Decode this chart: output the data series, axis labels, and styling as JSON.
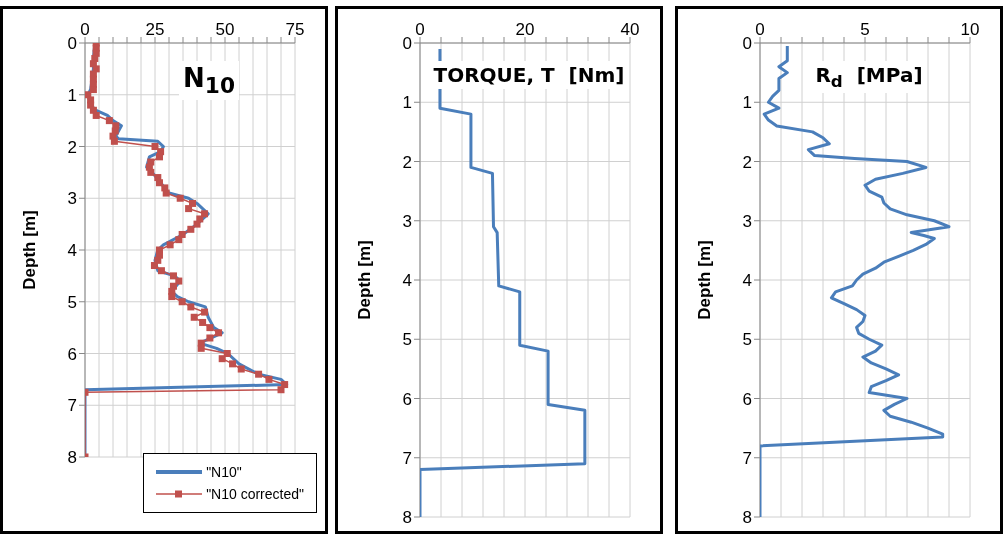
{
  "chart_data": [
    {
      "type": "line",
      "title": "N$_{10}$",
      "ylabel": "Depth  [m]",
      "xlim": [
        0,
        75
      ],
      "xticks": [
        0,
        {
          "value": 5,
          "label": null
        },
        {
          "value": 10,
          "label": null
        },
        {
          "value": 15,
          "label": null
        },
        {
          "value": 20,
          "label": null
        },
        25,
        {
          "value": 30,
          "label": null
        },
        {
          "value": 35,
          "label": null
        },
        {
          "value": 40,
          "label": null
        },
        {
          "value": 45,
          "label": null
        },
        50,
        {
          "value": 55,
          "label": null
        },
        {
          "value": 60,
          "label": null
        },
        {
          "value": 65,
          "label": null
        },
        {
          "value": 70,
          "label": null
        },
        75
      ],
      "ylim": [
        8,
        0
      ],
      "yticks": [
        0,
        1,
        2,
        3,
        4,
        5,
        6,
        7,
        8
      ],
      "grid": true,
      "legend": "bottom right",
      "series": [
        {
          "name": "\"N10\"",
          "color": "#4a7ebb",
          "marker": "none",
          "x": [
            3.5,
            3,
            3,
            2,
            1,
            2,
            4,
            8,
            10,
            13,
            11,
            12,
            26,
            28,
            27,
            23,
            22,
            24,
            27,
            30,
            37,
            40,
            42,
            44,
            40,
            35,
            28,
            26,
            25,
            26,
            32,
            34,
            31,
            33,
            37,
            43,
            44,
            46,
            49,
            41,
            47,
            51,
            55,
            62,
            70,
            72,
            0,
            0
          ],
          "values": [
            0,
            0.3,
            0.5,
            0.9,
            1,
            1.2,
            1.3,
            1.4,
            1.5,
            1.6,
            1.8,
            1.85,
            1.9,
            2,
            2.1,
            2.2,
            2.4,
            2.5,
            2.7,
            2.9,
            3,
            3.1,
            3.2,
            3.3,
            3.5,
            3.7,
            3.9,
            4,
            4.2,
            4.4,
            4.5,
            4.6,
            4.8,
            4.9,
            5,
            5.1,
            5.3,
            5.5,
            5.6,
            5.8,
            5.9,
            6,
            6.2,
            6.4,
            6.5,
            6.6,
            6.7,
            8
          ]
        },
        {
          "name": "\"N10 corrected\"",
          "color": "#c0504d",
          "marker": "square",
          "x": [
            4,
            4,
            4,
            3.5,
            3,
            4,
            3,
            3,
            3,
            3,
            1,
            2,
            2,
            3,
            4,
            8.7,
            11,
            10.8,
            10,
            10.5,
            25,
            27,
            26.6,
            23.5,
            23,
            23.5,
            26,
            26.6,
            28.5,
            29,
            34,
            38.4,
            37,
            42.7,
            41,
            40,
            37.8,
            34.7,
            33.5,
            30.4,
            26.6,
            26.6,
            26,
            24.8,
            27.3,
            31.6,
            33.5,
            31.6,
            31,
            31,
            34.7,
            37.8,
            42.7,
            39,
            42,
            44.6,
            47.7,
            44.6,
            41.5,
            41.5,
            50.8,
            49,
            52.7,
            55.8,
            62,
            65.7,
            71.3,
            70,
            0,
            0
          ],
          "values": [
            0,
            0.1,
            0.2,
            0.3,
            0.4,
            0.5,
            0.6,
            0.7,
            0.8,
            0.9,
            1,
            1.1,
            1.2,
            1.3,
            1.4,
            1.5,
            1.6,
            1.7,
            1.8,
            1.9,
            2,
            2.1,
            2.2,
            2.3,
            2.4,
            2.5,
            2.6,
            2.7,
            2.8,
            2.9,
            3,
            3.1,
            3.2,
            3.3,
            3.4,
            3.5,
            3.6,
            3.7,
            3.8,
            3.9,
            4,
            4.1,
            4.2,
            4.3,
            4.4,
            4.5,
            4.6,
            4.7,
            4.8,
            4.9,
            5,
            5.1,
            5.2,
            5.3,
            5.4,
            5.5,
            5.6,
            5.7,
            5.8,
            5.9,
            6,
            6.1,
            6.2,
            6.3,
            6.4,
            6.5,
            6.6,
            6.7,
            6.75,
            8
          ]
        }
      ]
    },
    {
      "type": "line",
      "title": "TORQUE, T  [Nm]",
      "ylabel": "Depth  [m]",
      "xlim": [
        0,
        40
      ],
      "xticks": [
        0,
        {
          "value": 4,
          "label": null
        },
        {
          "value": 8,
          "label": null
        },
        {
          "value": 12,
          "label": null
        },
        {
          "value": 16,
          "label": null
        },
        20,
        {
          "value": 24,
          "label": null
        },
        {
          "value": 28,
          "label": null
        },
        {
          "value": 32,
          "label": null
        },
        {
          "value": 36,
          "label": null
        },
        40
      ],
      "ylim": [
        8,
        0
      ],
      "yticks": [
        0,
        1,
        2,
        3,
        4,
        5,
        6,
        7,
        8
      ],
      "grid": true,
      "series": [
        {
          "color": "#4a7ebb",
          "marker": "none",
          "x": [
            3.8,
            3.8,
            9.7,
            9.7,
            13.8,
            14,
            14.7,
            15,
            19,
            19,
            24.4,
            24.4,
            31.4,
            31.4,
            0,
            0
          ],
          "values": [
            0.1,
            1.1,
            1.2,
            2.1,
            2.2,
            3.1,
            3.2,
            4.1,
            4.2,
            5.1,
            5.2,
            6.1,
            6.2,
            7.1,
            7.2,
            8
          ]
        }
      ]
    },
    {
      "type": "line",
      "title": "R$_{d}$  [MPa]",
      "ylabel": "Depth  [m]",
      "xlim": [
        0,
        10
      ],
      "xticks": [
        0,
        {
          "value": 1,
          "label": null
        },
        {
          "value": 2,
          "label": null
        },
        {
          "value": 3,
          "label": null
        },
        {
          "value": 4,
          "label": null
        },
        5,
        {
          "value": 6,
          "label": null
        },
        {
          "value": 7,
          "label": null
        },
        {
          "value": 8,
          "label": null
        },
        {
          "value": 9,
          "label": null
        },
        10
      ],
      "ylim": [
        8,
        0
      ],
      "yticks": [
        0,
        1,
        2,
        3,
        4,
        5,
        6,
        7,
        8
      ],
      "grid": true,
      "series": [
        {
          "color": "#4a7ebb",
          "marker": "none",
          "x": [
            1.3,
            1.3,
            0.9,
            1.3,
            0.9,
            0.9,
            0.6,
            0.4,
            0.9,
            0.2,
            0.4,
            0.8,
            2.5,
            3,
            3.3,
            2.3,
            2.6,
            4.5,
            7,
            7.9,
            6.8,
            5.5,
            5,
            5.2,
            5.8,
            5.9,
            6.2,
            7,
            8.3,
            9,
            7.2,
            7.8,
            8.3,
            7.9,
            7.3,
            6.6,
            5.9,
            5.5,
            4.9,
            4.6,
            4.4,
            3.6,
            3.4,
            4,
            4.6,
            5,
            4.9,
            4.6,
            4.7,
            5.2,
            5.8,
            5.5,
            4.9,
            5.3,
            6,
            6.6,
            6,
            5.3,
            5.2,
            7,
            6.4,
            5.9,
            6.2,
            7.2,
            8,
            8.7,
            8.7,
            0,
            0
          ],
          "values": [
            0.05,
            0.3,
            0.4,
            0.5,
            0.6,
            0.8,
            0.9,
            1,
            1.1,
            1.2,
            1.3,
            1.4,
            1.5,
            1.6,
            1.7,
            1.8,
            1.9,
            1.95,
            2,
            2.1,
            2.2,
            2.3,
            2.4,
            2.5,
            2.6,
            2.7,
            2.8,
            2.9,
            3,
            3.1,
            3.2,
            3.25,
            3.3,
            3.4,
            3.5,
            3.6,
            3.7,
            3.8,
            3.9,
            4,
            4.1,
            4.2,
            4.3,
            4.4,
            4.5,
            4.6,
            4.7,
            4.8,
            4.9,
            5,
            5.1,
            5.2,
            5.3,
            5.4,
            5.5,
            5.6,
            5.7,
            5.8,
            5.9,
            6,
            6.1,
            6.2,
            6.3,
            6.4,
            6.5,
            6.6,
            6.65,
            6.8,
            8
          ]
        }
      ]
    }
  ]
}
